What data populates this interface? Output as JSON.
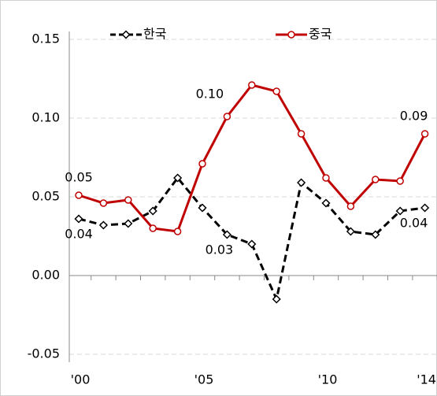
{
  "chart_data": {
    "type": "line",
    "categories": [
      "'00",
      null,
      null,
      null,
      null,
      "'05",
      null,
      null,
      null,
      null,
      "'10",
      null,
      null,
      null,
      "'14"
    ],
    "series": [
      {
        "name": "한국",
        "color": "#000000",
        "dashed": true,
        "marker": "diamond",
        "values": [
          0.036,
          0.032,
          0.033,
          0.041,
          0.062,
          0.043,
          0.026,
          0.02,
          -0.015,
          0.059,
          0.046,
          0.028,
          0.026,
          0.041,
          0.043
        ],
        "value_labels": [
          "0.04",
          null,
          null,
          null,
          null,
          null,
          "0.03",
          null,
          null,
          null,
          null,
          null,
          null,
          null,
          "0.04"
        ]
      },
      {
        "name": "중국",
        "color": "#c00000",
        "dashed": false,
        "marker": "circle",
        "values": [
          0.051,
          0.046,
          0.048,
          0.03,
          0.028,
          0.071,
          0.101,
          0.121,
          0.117,
          0.09,
          0.062,
          0.044,
          0.061,
          0.06,
          0.09
        ],
        "value_labels": [
          "0.05",
          null,
          null,
          null,
          null,
          null,
          "0.10",
          null,
          null,
          null,
          null,
          null,
          null,
          null,
          "0.09"
        ]
      }
    ],
    "ylim": [
      -0.05,
      0.15
    ],
    "yticks": [
      -0.05,
      {
        "value": 0.0,
        "label": "0.00"
      },
      0.05,
      {
        "value": 0.1,
        "label": "0.10"
      },
      0.15
    ],
    "grid": true,
    "legend": "top"
  }
}
